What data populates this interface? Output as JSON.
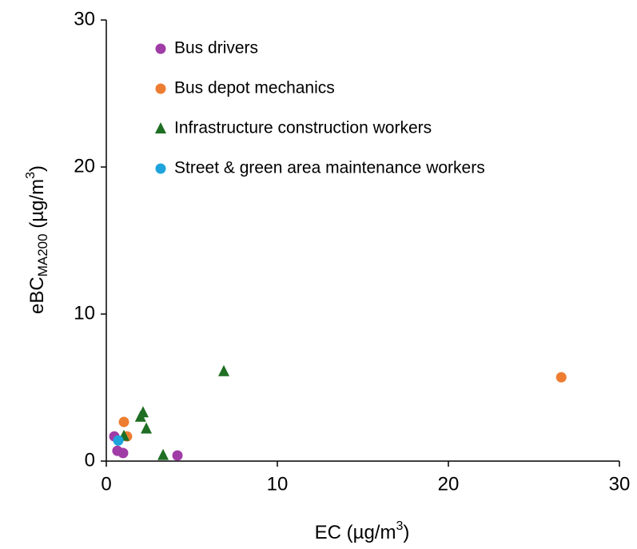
{
  "chart_data": {
    "type": "scatter",
    "x_label": [
      "EC (µg/m",
      "3",
      ")"
    ],
    "y_label": [
      "eBC",
      "MA200",
      " (µg/m",
      "3",
      ")"
    ],
    "xlim": [
      0,
      30
    ],
    "xticks": [
      0,
      10,
      20,
      30
    ],
    "ylim": [
      0,
      30
    ],
    "yticks": [
      0,
      10,
      20,
      30
    ],
    "grid": false,
    "legend": "upper-left",
    "series": [
      {
        "name": "Bus drivers",
        "color": "#a03ca6",
        "marker": "circle",
        "x": [
          0.47,
          0.65,
          0.98,
          4.16
        ],
        "y": [
          1.68,
          0.7,
          0.55,
          0.38
        ]
      },
      {
        "name": "Bus depot mechanics",
        "color": "#ed7d31",
        "marker": "circle",
        "x": [
          1.03,
          1.21,
          26.6
        ],
        "y": [
          2.66,
          1.68,
          5.7
        ]
      },
      {
        "name": "Infrastructure construction workers",
        "color": "#1e6e23",
        "marker": "triangle",
        "x": [
          1.03,
          2.0,
          2.15,
          2.34,
          3.32,
          6.87
        ],
        "y": [
          1.7,
          3.0,
          3.3,
          2.2,
          0.4,
          6.1
        ]
      },
      {
        "name": "Street & green area maintenance workers",
        "color": "#1fa3dc",
        "marker": "circle",
        "x": [
          0.7
        ],
        "y": [
          1.4
        ]
      }
    ]
  }
}
